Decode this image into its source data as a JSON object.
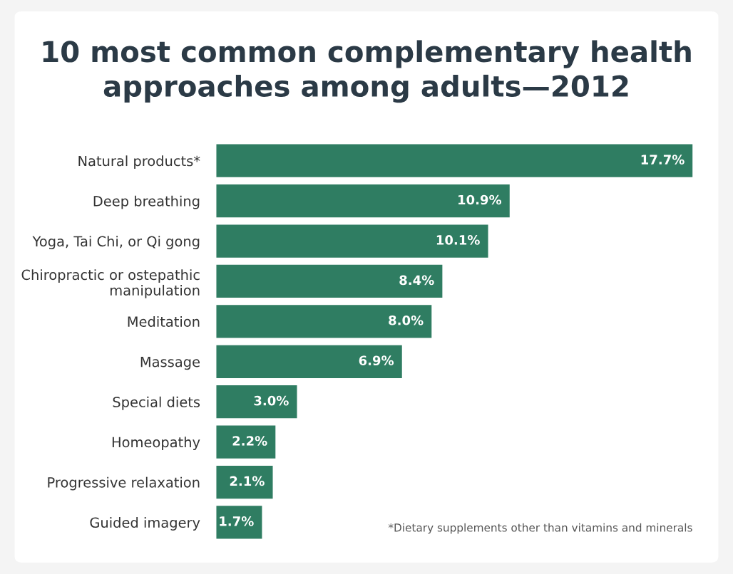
{
  "chart_data": {
    "type": "bar",
    "orientation": "horizontal",
    "title": "10 most common complementary health\napproaches among adults—2012",
    "categories": [
      "Natural products*",
      "Deep breathing",
      "Yoga, Tai Chi, or Qi gong",
      "Chiropractic or ostepathic\nmanipulation",
      "Meditation",
      "Massage",
      "Special diets",
      "Homeopathy",
      "Progressive relaxation",
      "Guided imagery"
    ],
    "values": [
      17.7,
      10.9,
      10.1,
      8.4,
      8.0,
      6.9,
      3.0,
      2.2,
      2.1,
      1.7
    ],
    "value_labels": [
      "17.7%",
      "10.9%",
      "10.1%",
      "8.4%",
      "8.0%",
      "6.9%",
      "3.0%",
      "2.2%",
      "2.1%",
      "1.7%"
    ],
    "color": "#2f7d62",
    "grid": false,
    "legend": false,
    "tick_labels": "y",
    "annotations": [
      "*Dietary supplements other than vitamins and minerals"
    ]
  }
}
